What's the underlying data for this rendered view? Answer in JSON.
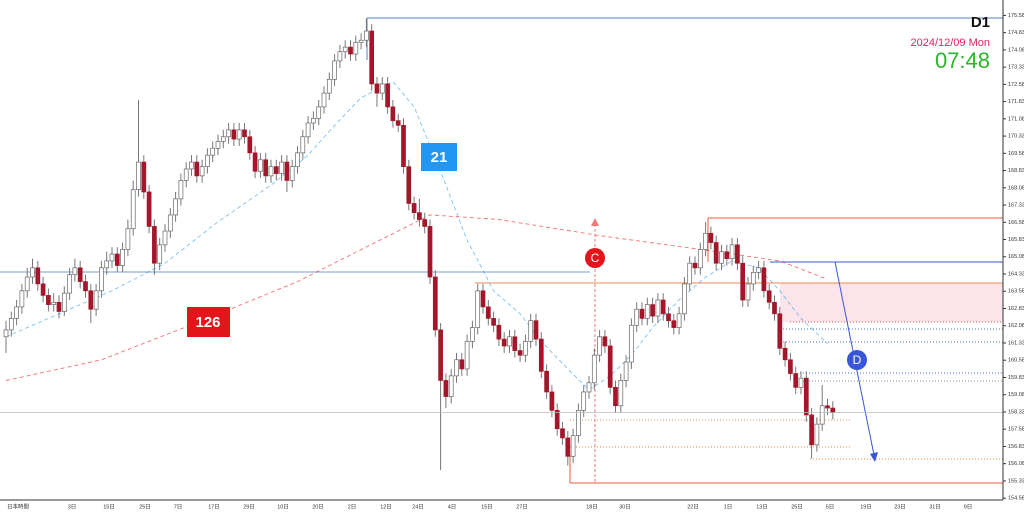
{
  "chart_data": {
    "type": "candlestick",
    "title": "D1",
    "subtitle": "2024/12/09 Mon",
    "time": "07:48",
    "annotations": [
      "C",
      "D"
    ],
    "ylim": [
      154.5,
      176.25
    ],
    "yticks": [
      {
        "value": 175.58,
        "label": "175.580"
      },
      {
        "value": 174.83,
        "label": "174.830"
      },
      {
        "value": 174.08,
        "label": "174.080"
      },
      {
        "value": 173.33,
        "label": "173.330"
      },
      {
        "value": 172.58,
        "label": "172.580"
      },
      {
        "value": 171.83,
        "label": "171.830"
      },
      {
        "value": 171.08,
        "label": "171.080"
      },
      {
        "value": 170.33,
        "label": "170.330"
      },
      {
        "value": 169.58,
        "label": "169.580"
      },
      {
        "value": 168.83,
        "label": "168.830"
      },
      {
        "value": 168.08,
        "label": "168.080"
      },
      {
        "value": 167.33,
        "label": "167.330"
      },
      {
        "value": 166.58,
        "label": "166.580"
      },
      {
        "value": 165.83,
        "label": "165.830"
      },
      {
        "value": 165.08,
        "label": "165.080"
      },
      {
        "value": 164.33,
        "label": "164.330"
      },
      {
        "value": 163.58,
        "label": "163.580"
      },
      {
        "value": 162.83,
        "label": "162.830"
      },
      {
        "value": 162.08,
        "label": "162.080"
      },
      {
        "value": 161.33,
        "label": "161.330"
      },
      {
        "value": 160.58,
        "label": "160.580"
      },
      {
        "value": 159.83,
        "label": "159.830"
      },
      {
        "value": 159.08,
        "label": "159.080"
      },
      {
        "value": 158.33,
        "label": "158.330"
      },
      {
        "value": 157.58,
        "label": "157.580"
      },
      {
        "value": 156.83,
        "label": "156.830"
      },
      {
        "value": 156.08,
        "label": "156.080"
      },
      {
        "value": 155.33,
        "label": "155.330"
      },
      {
        "value": 154.58,
        "label": "154.580"
      }
    ],
    "xlabels": [
      "日本時間",
      "3日",
      "15日",
      "25日",
      "7日",
      "17日",
      "29日",
      "10日",
      "20日",
      "2日",
      "12日",
      "24日",
      "4日",
      "15日",
      "27日",
      "18日",
      "30日",
      "22日",
      "1日",
      "13日",
      "25日",
      "5日",
      "19日",
      "23日",
      "31日",
      "9日"
    ],
    "up_color": "#ffffff",
    "down_color": "#a3172b",
    "ohlc": [
      [
        161.6,
        162.3,
        160.9,
        161.9
      ],
      [
        161.9,
        162.7,
        161.6,
        162.4
      ],
      [
        162.4,
        163.2,
        162.1,
        162.9
      ],
      [
        162.9,
        163.9,
        162.6,
        163.6
      ],
      [
        163.6,
        164.6,
        163.3,
        164.2
      ],
      [
        164.2,
        165.0,
        163.9,
        164.6
      ],
      [
        164.6,
        164.9,
        163.6,
        163.9
      ],
      [
        163.9,
        164.2,
        163.1,
        163.4
      ],
      [
        163.4,
        163.7,
        162.7,
        163.0
      ],
      [
        163.0,
        163.5,
        162.7,
        163.1
      ],
      [
        163.1,
        163.4,
        162.4,
        162.7
      ],
      [
        162.7,
        163.8,
        162.5,
        163.5
      ],
      [
        163.5,
        164.6,
        163.2,
        164.3
      ],
      [
        164.3,
        165.0,
        164.0,
        164.6
      ],
      [
        164.6,
        164.9,
        163.7,
        164.0
      ],
      [
        164.0,
        164.3,
        163.3,
        163.6
      ],
      [
        163.6,
        163.9,
        162.2,
        162.8
      ],
      [
        162.8,
        163.9,
        162.5,
        163.6
      ],
      [
        163.6,
        164.9,
        163.3,
        164.6
      ],
      [
        164.6,
        165.3,
        164.3,
        164.9
      ],
      [
        164.9,
        165.5,
        164.6,
        165.2
      ],
      [
        165.2,
        165.5,
        164.4,
        164.7
      ],
      [
        164.7,
        165.7,
        164.4,
        165.4
      ],
      [
        165.4,
        166.7,
        165.1,
        166.3
      ],
      [
        166.3,
        168.4,
        166.0,
        168.0
      ],
      [
        168.0,
        171.9,
        167.7,
        169.2
      ],
      [
        169.2,
        169.5,
        167.6,
        167.9
      ],
      [
        167.9,
        168.2,
        166.1,
        166.4
      ],
      [
        166.4,
        166.7,
        164.3,
        164.8
      ],
      [
        164.8,
        165.9,
        164.5,
        165.6
      ],
      [
        165.6,
        166.5,
        165.3,
        166.2
      ],
      [
        166.2,
        167.2,
        165.9,
        166.9
      ],
      [
        166.9,
        167.9,
        166.6,
        167.6
      ],
      [
        167.6,
        168.7,
        167.3,
        168.4
      ],
      [
        168.4,
        169.2,
        168.1,
        168.9
      ],
      [
        168.9,
        169.5,
        168.6,
        169.2
      ],
      [
        169.2,
        169.5,
        168.3,
        168.6
      ],
      [
        168.6,
        169.3,
        168.3,
        169.0
      ],
      [
        169.0,
        169.8,
        168.7,
        169.5
      ],
      [
        169.5,
        170.1,
        169.2,
        169.8
      ],
      [
        169.8,
        170.4,
        169.5,
        170.1
      ],
      [
        170.1,
        170.6,
        169.8,
        170.3
      ],
      [
        170.3,
        170.9,
        170.0,
        170.6
      ],
      [
        170.6,
        170.9,
        169.9,
        170.2
      ],
      [
        170.2,
        170.9,
        169.9,
        170.6
      ],
      [
        170.6,
        170.9,
        170.0,
        170.3
      ],
      [
        170.3,
        170.6,
        169.3,
        169.6
      ],
      [
        169.6,
        169.9,
        168.5,
        168.8
      ],
      [
        168.8,
        169.6,
        168.5,
        169.3
      ],
      [
        169.3,
        169.6,
        168.3,
        168.6
      ],
      [
        168.6,
        169.3,
        168.3,
        169.0
      ],
      [
        169.0,
        169.3,
        168.4,
        168.7
      ],
      [
        168.7,
        169.5,
        168.4,
        169.2
      ],
      [
        169.2,
        169.5,
        167.9,
        168.4
      ],
      [
        168.4,
        169.3,
        168.1,
        169.0
      ],
      [
        169.0,
        169.9,
        168.7,
        169.6
      ],
      [
        169.6,
        170.6,
        169.3,
        170.3
      ],
      [
        170.3,
        171.2,
        170.0,
        170.9
      ],
      [
        170.9,
        171.4,
        170.6,
        171.1
      ],
      [
        171.1,
        171.9,
        170.8,
        171.6
      ],
      [
        171.6,
        172.5,
        171.3,
        172.2
      ],
      [
        172.2,
        173.1,
        171.9,
        172.8
      ],
      [
        172.8,
        173.9,
        172.5,
        173.6
      ],
      [
        173.6,
        174.3,
        173.3,
        174.0
      ],
      [
        174.0,
        174.5,
        173.7,
        174.2
      ],
      [
        174.2,
        174.5,
        173.6,
        173.9
      ],
      [
        173.9,
        174.7,
        173.6,
        174.4
      ],
      [
        174.4,
        174.8,
        174.1,
        174.5
      ],
      [
        174.5,
        175.45,
        174.2,
        174.9
      ],
      [
        174.9,
        175.2,
        172.3,
        172.6
      ],
      [
        172.6,
        172.9,
        171.6,
        172.2
      ],
      [
        172.2,
        172.9,
        171.9,
        172.6
      ],
      [
        172.6,
        172.9,
        171.3,
        171.6
      ],
      [
        171.6,
        171.9,
        170.7,
        171.0
      ],
      [
        171.0,
        171.3,
        170.5,
        170.8
      ],
      [
        170.8,
        171.1,
        168.7,
        169.0
      ],
      [
        169.0,
        169.3,
        167.1,
        167.4
      ],
      [
        167.4,
        167.7,
        166.7,
        167.0
      ],
      [
        167.0,
        167.6,
        166.4,
        166.7
      ],
      [
        166.7,
        167.0,
        166.1,
        166.4
      ],
      [
        166.4,
        166.7,
        163.9,
        164.2
      ],
      [
        164.2,
        164.5,
        161.6,
        161.9
      ],
      [
        161.9,
        162.2,
        155.8,
        159.7
      ],
      [
        159.7,
        160.0,
        158.5,
        159.0
      ],
      [
        159.0,
        160.2,
        158.7,
        159.9
      ],
      [
        159.9,
        160.9,
        159.6,
        160.6
      ],
      [
        160.6,
        160.9,
        159.9,
        160.2
      ],
      [
        160.2,
        161.7,
        159.9,
        161.4
      ],
      [
        161.4,
        162.3,
        161.1,
        162.0
      ],
      [
        162.0,
        163.9,
        161.7,
        163.6
      ],
      [
        163.6,
        163.9,
        162.6,
        162.9
      ],
      [
        162.9,
        163.2,
        162.1,
        162.4
      ],
      [
        162.4,
        162.7,
        161.8,
        162.1
      ],
      [
        162.1,
        162.4,
        161.2,
        161.5
      ],
      [
        161.5,
        161.8,
        160.9,
        161.2
      ],
      [
        161.2,
        161.9,
        160.9,
        161.6
      ],
      [
        161.6,
        161.9,
        160.7,
        161.0
      ],
      [
        161.0,
        161.3,
        160.5,
        160.8
      ],
      [
        160.8,
        161.7,
        160.5,
        161.4
      ],
      [
        161.4,
        162.6,
        161.1,
        162.3
      ],
      [
        162.3,
        162.6,
        161.2,
        161.5
      ],
      [
        161.5,
        161.8,
        159.8,
        160.1
      ],
      [
        160.1,
        160.4,
        158.9,
        159.2
      ],
      [
        159.2,
        159.5,
        158.1,
        158.4
      ],
      [
        158.4,
        158.7,
        157.3,
        157.6
      ],
      [
        157.6,
        157.9,
        156.9,
        157.2
      ],
      [
        157.2,
        157.5,
        156.0,
        156.4
      ],
      [
        156.4,
        157.6,
        156.1,
        157.3
      ],
      [
        157.3,
        158.7,
        157.0,
        158.4
      ],
      [
        158.4,
        159.5,
        158.1,
        159.2
      ],
      [
        159.2,
        159.9,
        158.9,
        159.6
      ],
      [
        159.6,
        161.1,
        159.3,
        160.8
      ],
      [
        160.8,
        161.9,
        160.5,
        161.6
      ],
      [
        161.6,
        161.9,
        160.9,
        161.2
      ],
      [
        161.2,
        161.5,
        159.1,
        159.4
      ],
      [
        159.4,
        159.7,
        158.3,
        158.6
      ],
      [
        158.6,
        160.0,
        158.3,
        159.7
      ],
      [
        159.7,
        160.8,
        159.4,
        160.5
      ],
      [
        160.5,
        162.4,
        160.2,
        162.1
      ],
      [
        162.1,
        163.1,
        161.8,
        162.8
      ],
      [
        162.8,
        163.1,
        162.1,
        162.4
      ],
      [
        162.4,
        163.3,
        162.1,
        163.0
      ],
      [
        163.0,
        163.3,
        162.2,
        162.5
      ],
      [
        162.5,
        163.5,
        162.2,
        163.2
      ],
      [
        163.2,
        163.5,
        162.3,
        162.6
      ],
      [
        162.6,
        162.9,
        162.0,
        162.3
      ],
      [
        162.3,
        162.6,
        161.7,
        162.0
      ],
      [
        162.0,
        162.9,
        161.7,
        162.6
      ],
      [
        162.6,
        164.2,
        162.3,
        163.9
      ],
      [
        163.9,
        165.1,
        163.6,
        164.8
      ],
      [
        164.8,
        165.1,
        164.3,
        164.6
      ],
      [
        164.6,
        165.7,
        164.3,
        165.4
      ],
      [
        165.4,
        166.6,
        165.1,
        166.1
      ],
      [
        166.1,
        166.4,
        165.4,
        165.7
      ],
      [
        165.7,
        166.0,
        164.5,
        164.8
      ],
      [
        164.8,
        165.6,
        164.5,
        165.3
      ],
      [
        165.3,
        165.6,
        164.7,
        165.0
      ],
      [
        165.0,
        165.9,
        164.7,
        165.6
      ],
      [
        165.6,
        165.9,
        164.5,
        164.8
      ],
      [
        164.8,
        165.1,
        162.9,
        163.2
      ],
      [
        163.2,
        164.2,
        162.9,
        163.9
      ],
      [
        163.9,
        164.7,
        163.6,
        164.4
      ],
      [
        164.4,
        164.9,
        164.1,
        164.6
      ],
      [
        164.6,
        164.9,
        163.3,
        163.6
      ],
      [
        163.6,
        163.9,
        162.8,
        163.1
      ],
      [
        163.1,
        163.4,
        162.3,
        162.6
      ],
      [
        162.6,
        162.9,
        160.8,
        161.1
      ],
      [
        161.1,
        161.4,
        160.3,
        160.6
      ],
      [
        160.6,
        160.9,
        159.7,
        160.0
      ],
      [
        160.0,
        160.3,
        159.1,
        159.4
      ],
      [
        159.4,
        160.1,
        159.1,
        159.8
      ],
      [
        159.8,
        160.1,
        157.9,
        158.2
      ],
      [
        158.2,
        158.5,
        156.3,
        156.9
      ],
      [
        156.9,
        158.1,
        156.6,
        157.8
      ],
      [
        157.8,
        159.5,
        157.5,
        158.6
      ],
      [
        158.6,
        158.9,
        158.2,
        158.5
      ],
      [
        158.5,
        158.8,
        158.0,
        158.3
      ]
    ],
    "series": [
      {
        "name": "21",
        "color": "#2196f3",
        "x": [
          0,
          10,
          20,
          30,
          40,
          50,
          57,
          62,
          67,
          73,
          77,
          82,
          87,
          92,
          97,
          101,
          106,
          110,
          114,
          118,
          122,
          127,
          132,
          137,
          142,
          146,
          150,
          155
        ],
        "values": [
          161.6,
          162.6,
          163.6,
          164.8,
          166.6,
          168.2,
          169.5,
          170.8,
          172.0,
          172.7,
          171.6,
          168.8,
          165.8,
          163.6,
          162.6,
          161.4,
          160.2,
          159.3,
          159.9,
          160.8,
          162.0,
          163.2,
          164.2,
          164.9,
          164.6,
          163.6,
          162.4,
          161.3
        ]
      },
      {
        "name": "126",
        "color": "#e4141b",
        "x": [
          0,
          18,
          37,
          55,
          74,
          80,
          93,
          112,
          131,
          146,
          155
        ],
        "values": [
          159.7,
          160.6,
          162.3,
          164.0,
          166.2,
          166.9,
          166.7,
          166.0,
          165.4,
          164.9,
          164.1
        ]
      }
    ]
  }
}
